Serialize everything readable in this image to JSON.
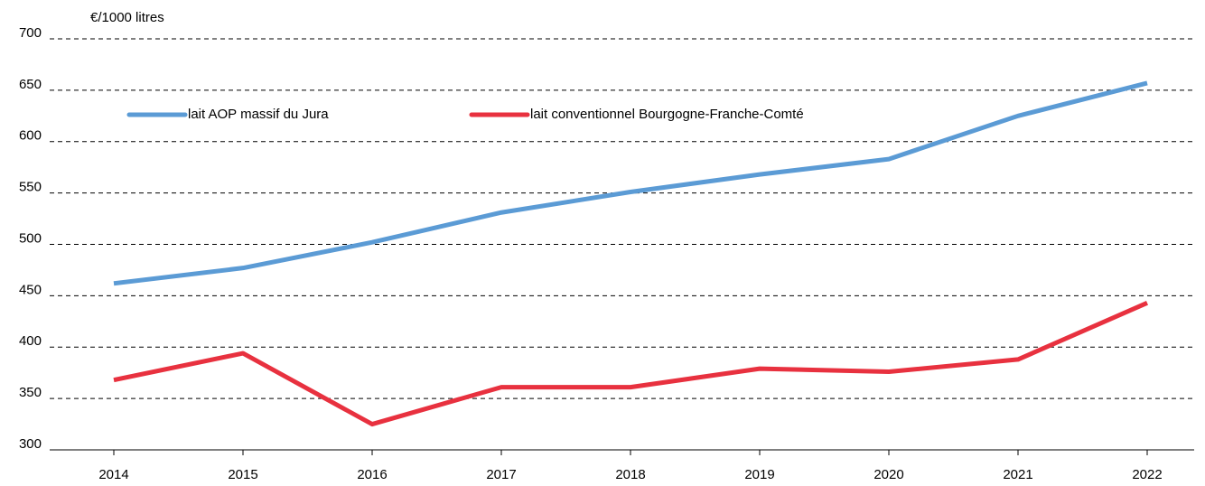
{
  "chart_data": {
    "type": "line",
    "y_axis_label": "€/1000 litres",
    "categories": [
      "2014",
      "2015",
      "2016",
      "2017",
      "2018",
      "2019",
      "2020",
      "2021",
      "2022"
    ],
    "series": [
      {
        "name": "lait AOP massif du Jura",
        "color": "#5b9bd5",
        "values": [
          462,
          477,
          502,
          531,
          551,
          568,
          583,
          625,
          657
        ]
      },
      {
        "name": "lait conventionnel Bourgogne-Franche-Comté",
        "color": "#e8313f",
        "values": [
          368,
          394,
          325,
          361,
          361,
          379,
          376,
          388,
          443
        ]
      }
    ],
    "ylim": [
      300,
      700
    ],
    "yticks": [
      300,
      350,
      400,
      450,
      500,
      550,
      600,
      650,
      700
    ],
    "grid": true,
    "legend": "top"
  }
}
